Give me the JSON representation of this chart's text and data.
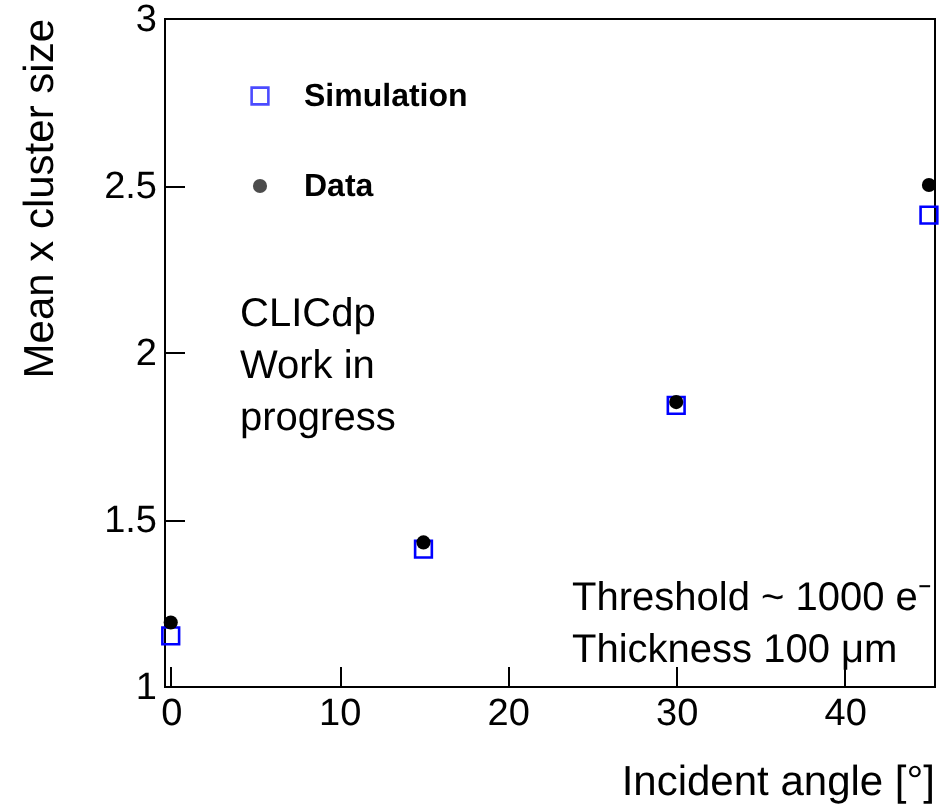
{
  "chart_data": {
    "type": "scatter",
    "xlabel": "Incident angle [°]",
    "ylabel": "Mean x cluster size",
    "x": [
      0,
      15,
      30,
      45
    ],
    "series": [
      {
        "name": "Simulation",
        "color": "#0000ff",
        "marker": "square",
        "values": [
          1.15,
          1.41,
          1.84,
          2.41
        ]
      },
      {
        "name": "Data",
        "color": "#000000",
        "marker": "circle",
        "values": [
          1.19,
          1.43,
          1.85,
          2.5
        ]
      }
    ],
    "xlim": [
      -0.4,
      45.3
    ],
    "ylim": [
      1,
      3
    ],
    "xticks": [
      0,
      10,
      20,
      30,
      40
    ],
    "yticks": [
      1,
      1.5,
      2,
      2.5,
      3
    ],
    "legend": "top left",
    "grid": false,
    "annotations": [
      "CLICdp",
      "Work in progress",
      "Threshold ~ 1000 e⁻",
      "Thickness 100 μm"
    ]
  }
}
